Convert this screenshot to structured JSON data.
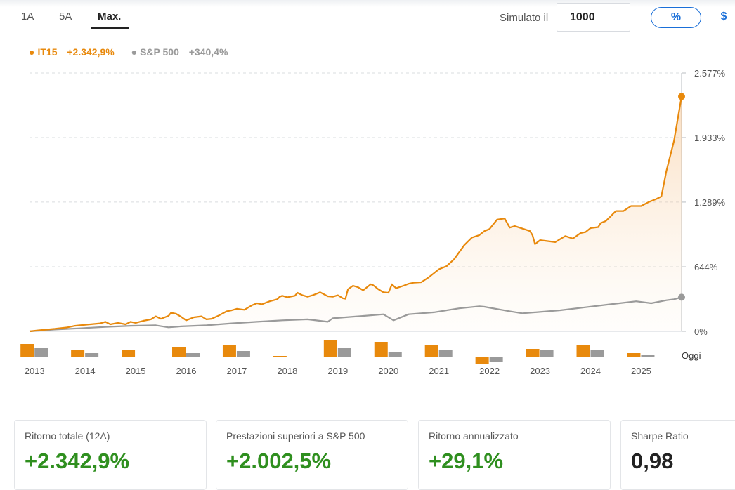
{
  "tabs": [
    {
      "label": "1A",
      "active": false
    },
    {
      "label": "5A",
      "active": false
    },
    {
      "label": "Max.",
      "active": true
    }
  ],
  "simulator": {
    "label": "Simulato il",
    "value": "1000"
  },
  "units_toggle": {
    "percent": "%",
    "dollar": "$",
    "selected": "percent"
  },
  "legend": [
    {
      "name": "IT15",
      "value": "+2.342,9%",
      "color": "#e8890c"
    },
    {
      "name": "S&P 500",
      "value": "+340,4%",
      "color": "#9a9a9a"
    }
  ],
  "chart_data": {
    "type": "line",
    "y_unit": "%",
    "y_ticks": [
      {
        "value": 2577,
        "label": "2.577%"
      },
      {
        "value": 1933,
        "label": "1.933%"
      },
      {
        "value": 1289,
        "label": "1.289%"
      },
      {
        "value": 644,
        "label": "644%"
      },
      {
        "value": 0,
        "label": "0%"
      }
    ],
    "ylim": [
      0,
      2577
    ],
    "x_labels": [
      "2013",
      "2014",
      "2015",
      "2016",
      "2017",
      "2018",
      "2019",
      "2020",
      "2021",
      "2022",
      "2023",
      "2024",
      "2025"
    ],
    "x_range": [
      2013,
      2025.9
    ],
    "today_label": "Oggi",
    "grid": true,
    "series": [
      {
        "name": "IT15",
        "color": "#e8890c",
        "points": [
          [
            2013.0,
            0
          ],
          [
            2013.17,
            10
          ],
          [
            2013.5,
            25
          ],
          [
            2013.75,
            40
          ],
          [
            2013.9,
            55
          ],
          [
            2014.0,
            60
          ],
          [
            2014.2,
            70
          ],
          [
            2014.4,
            80
          ],
          [
            2014.5,
            95
          ],
          [
            2014.6,
            70
          ],
          [
            2014.75,
            85
          ],
          [
            2014.9,
            70
          ],
          [
            2015.0,
            95
          ],
          [
            2015.1,
            85
          ],
          [
            2015.25,
            105
          ],
          [
            2015.4,
            120
          ],
          [
            2015.5,
            150
          ],
          [
            2015.6,
            125
          ],
          [
            2015.75,
            155
          ],
          [
            2015.8,
            185
          ],
          [
            2015.9,
            175
          ],
          [
            2016.0,
            145
          ],
          [
            2016.1,
            110
          ],
          [
            2016.25,
            140
          ],
          [
            2016.4,
            150
          ],
          [
            2016.5,
            120
          ],
          [
            2016.6,
            125
          ],
          [
            2016.75,
            160
          ],
          [
            2016.9,
            200
          ],
          [
            2017.0,
            210
          ],
          [
            2017.1,
            225
          ],
          [
            2017.25,
            215
          ],
          [
            2017.4,
            260
          ],
          [
            2017.5,
            280
          ],
          [
            2017.6,
            270
          ],
          [
            2017.75,
            300
          ],
          [
            2017.9,
            320
          ],
          [
            2017.95,
            345
          ],
          [
            2018.0,
            355
          ],
          [
            2018.1,
            340
          ],
          [
            2018.25,
            355
          ],
          [
            2018.3,
            385
          ],
          [
            2018.4,
            360
          ],
          [
            2018.5,
            345
          ],
          [
            2018.6,
            360
          ],
          [
            2018.75,
            390
          ],
          [
            2018.9,
            350
          ],
          [
            2019.0,
            345
          ],
          [
            2019.1,
            360
          ],
          [
            2019.2,
            330
          ],
          [
            2019.25,
            325
          ],
          [
            2019.3,
            420
          ],
          [
            2019.4,
            455
          ],
          [
            2019.5,
            440
          ],
          [
            2019.6,
            410
          ],
          [
            2019.75,
            470
          ],
          [
            2019.8,
            460
          ],
          [
            2019.9,
            420
          ],
          [
            2020.0,
            390
          ],
          [
            2020.1,
            385
          ],
          [
            2020.17,
            470
          ],
          [
            2020.25,
            430
          ],
          [
            2020.4,
            455
          ],
          [
            2020.5,
            475
          ],
          [
            2020.6,
            485
          ],
          [
            2020.75,
            490
          ],
          [
            2020.9,
            540
          ],
          [
            2021.0,
            580
          ],
          [
            2021.1,
            620
          ],
          [
            2021.25,
            650
          ],
          [
            2021.4,
            720
          ],
          [
            2021.5,
            790
          ],
          [
            2021.6,
            860
          ],
          [
            2021.75,
            935
          ],
          [
            2021.9,
            960
          ],
          [
            2022.0,
            1000
          ],
          [
            2022.1,
            1020
          ],
          [
            2022.25,
            1115
          ],
          [
            2022.4,
            1125
          ],
          [
            2022.5,
            1035
          ],
          [
            2022.6,
            1050
          ],
          [
            2022.75,
            1025
          ],
          [
            2022.9,
            1000
          ],
          [
            2022.95,
            960
          ],
          [
            2023.0,
            870
          ],
          [
            2023.1,
            910
          ],
          [
            2023.25,
            900
          ],
          [
            2023.4,
            890
          ],
          [
            2023.5,
            920
          ],
          [
            2023.6,
            950
          ],
          [
            2023.75,
            925
          ],
          [
            2023.9,
            980
          ],
          [
            2024.0,
            990
          ],
          [
            2024.1,
            1030
          ],
          [
            2024.25,
            1040
          ],
          [
            2024.3,
            1080
          ],
          [
            2024.4,
            1100
          ],
          [
            2024.5,
            1150
          ],
          [
            2024.6,
            1200
          ],
          [
            2024.75,
            1200
          ],
          [
            2024.9,
            1250
          ],
          [
            2025.0,
            1250
          ],
          [
            2025.1,
            1250
          ],
          [
            2025.25,
            1290
          ],
          [
            2025.4,
            1320
          ],
          [
            2025.5,
            1345
          ],
          [
            2025.6,
            1600
          ],
          [
            2025.75,
            1900
          ],
          [
            2025.9,
            2342.9
          ]
        ]
      },
      {
        "name": "S&P 500",
        "color": "#9a9a9a",
        "points": [
          [
            2013.0,
            0
          ],
          [
            2013.5,
            18
          ],
          [
            2014.0,
            30
          ],
          [
            2014.5,
            45
          ],
          [
            2015.0,
            55
          ],
          [
            2015.5,
            60
          ],
          [
            2015.75,
            40
          ],
          [
            2016.0,
            50
          ],
          [
            2016.5,
            60
          ],
          [
            2017.0,
            80
          ],
          [
            2017.5,
            95
          ],
          [
            2018.0,
            110
          ],
          [
            2018.5,
            120
          ],
          [
            2018.9,
            95
          ],
          [
            2019.0,
            130
          ],
          [
            2019.5,
            150
          ],
          [
            2020.0,
            170
          ],
          [
            2020.2,
            110
          ],
          [
            2020.5,
            170
          ],
          [
            2021.0,
            190
          ],
          [
            2021.5,
            230
          ],
          [
            2021.9,
            250
          ],
          [
            2022.0,
            245
          ],
          [
            2022.5,
            200
          ],
          [
            2022.75,
            180
          ],
          [
            2023.0,
            190
          ],
          [
            2023.5,
            210
          ],
          [
            2024.0,
            240
          ],
          [
            2024.5,
            270
          ],
          [
            2025.0,
            300
          ],
          [
            2025.3,
            280
          ],
          [
            2025.6,
            310
          ],
          [
            2025.75,
            320
          ],
          [
            2025.9,
            340.4
          ]
        ]
      }
    ],
    "annual_returns": {
      "years": [
        "2013",
        "2014",
        "2015",
        "2016",
        "2017",
        "2018",
        "2019",
        "2020",
        "2021",
        "2022",
        "2023",
        "2024",
        "2025"
      ],
      "IT15": [
        18,
        10,
        9,
        14,
        16,
        0.5,
        24,
        21,
        17,
        -10,
        11,
        16,
        5
      ],
      "S&P 500": [
        12,
        5,
        -0.3,
        5,
        8,
        -1,
        12,
        6,
        10,
        -8,
        10,
        9,
        2
      ]
    }
  },
  "stats": [
    {
      "label": "Ritorno totale (12A)",
      "value": "+2.342,9%",
      "tone": "green"
    },
    {
      "label": "Prestazioni superiori a S&P 500",
      "value": "+2.002,5%",
      "tone": "green"
    },
    {
      "label": "Ritorno annualizzato",
      "value": "+29,1%",
      "tone": "green"
    },
    {
      "label": "Sharpe Ratio",
      "value": "0,98",
      "tone": "dark"
    }
  ]
}
